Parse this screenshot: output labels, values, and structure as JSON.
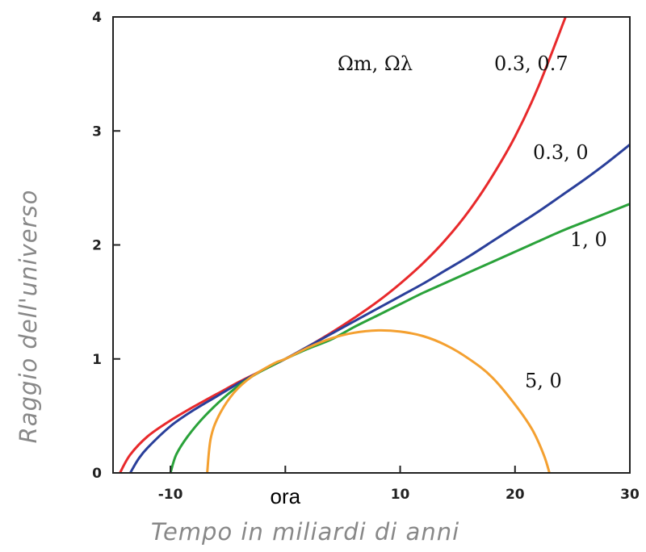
{
  "chart_data": {
    "type": "line",
    "xlabel": "Tempo in miliardi di anni",
    "ylabel": "Raggio dell'universo",
    "xlim": [
      -15,
      30
    ],
    "ylim": [
      0,
      4
    ],
    "x_ticks": [
      -10,
      0,
      10,
      20,
      30
    ],
    "x_tick_labels": [
      "-10",
      "ora",
      "10",
      "20",
      "30"
    ],
    "y_ticks": [
      0,
      1,
      2,
      3,
      4
    ],
    "y_tick_labels": [
      "0",
      "1",
      "2",
      "3",
      "4"
    ],
    "legend_title": "Ωm, Ωλ",
    "series": [
      {
        "name": "0.3, 0.7",
        "color": "#e8292b",
        "x": [
          -14.4,
          -13.5,
          -12,
          -10,
          -8,
          -6,
          -4,
          -2,
          0,
          2,
          4,
          6,
          8,
          10,
          12,
          14,
          16,
          18,
          20,
          22,
          24.4
        ],
        "y": [
          0,
          0.16,
          0.32,
          0.46,
          0.58,
          0.69,
          0.8,
          0.9,
          1.0,
          1.11,
          1.23,
          1.36,
          1.5,
          1.66,
          1.84,
          2.05,
          2.3,
          2.6,
          2.95,
          3.38,
          4.0
        ]
      },
      {
        "name": "0.3, 0",
        "color": "#2a3f9a",
        "x": [
          -13.5,
          -12.8,
          -12,
          -10,
          -8,
          -6,
          -4,
          -2,
          0,
          2,
          4,
          6,
          8,
          10,
          12,
          14,
          16,
          18,
          20,
          22,
          24,
          26,
          28,
          30
        ],
        "y": [
          0,
          0.12,
          0.22,
          0.41,
          0.55,
          0.67,
          0.79,
          0.9,
          1.0,
          1.11,
          1.22,
          1.33,
          1.44,
          1.55,
          1.66,
          1.78,
          1.9,
          2.03,
          2.16,
          2.29,
          2.43,
          2.57,
          2.72,
          2.88
        ]
      },
      {
        "name": "1, 0",
        "color": "#2aa23a",
        "x": [
          -10,
          -9.5,
          -8.5,
          -7,
          -5,
          -3,
          -1,
          0,
          2,
          4,
          6,
          8,
          10,
          12,
          14,
          16,
          18,
          20,
          22,
          24,
          26,
          28,
          30
        ],
        "y": [
          0,
          0.16,
          0.32,
          0.5,
          0.69,
          0.84,
          0.95,
          1.0,
          1.09,
          1.17,
          1.28,
          1.38,
          1.48,
          1.58,
          1.67,
          1.76,
          1.85,
          1.94,
          2.03,
          2.12,
          2.2,
          2.28,
          2.36
        ]
      },
      {
        "name": "5, 0",
        "color": "#f4a030",
        "x": [
          -6.8,
          -6.5,
          -5.8,
          -4.5,
          -3,
          -1,
          0,
          2,
          4,
          6,
          8.1,
          10,
          12,
          14,
          16,
          18,
          20,
          21.5,
          22.5,
          23
        ],
        "y": [
          0,
          0.3,
          0.5,
          0.7,
          0.84,
          0.96,
          1.0,
          1.1,
          1.18,
          1.23,
          1.25,
          1.24,
          1.2,
          1.12,
          1.0,
          0.84,
          0.6,
          0.38,
          0.16,
          0
        ]
      }
    ]
  }
}
